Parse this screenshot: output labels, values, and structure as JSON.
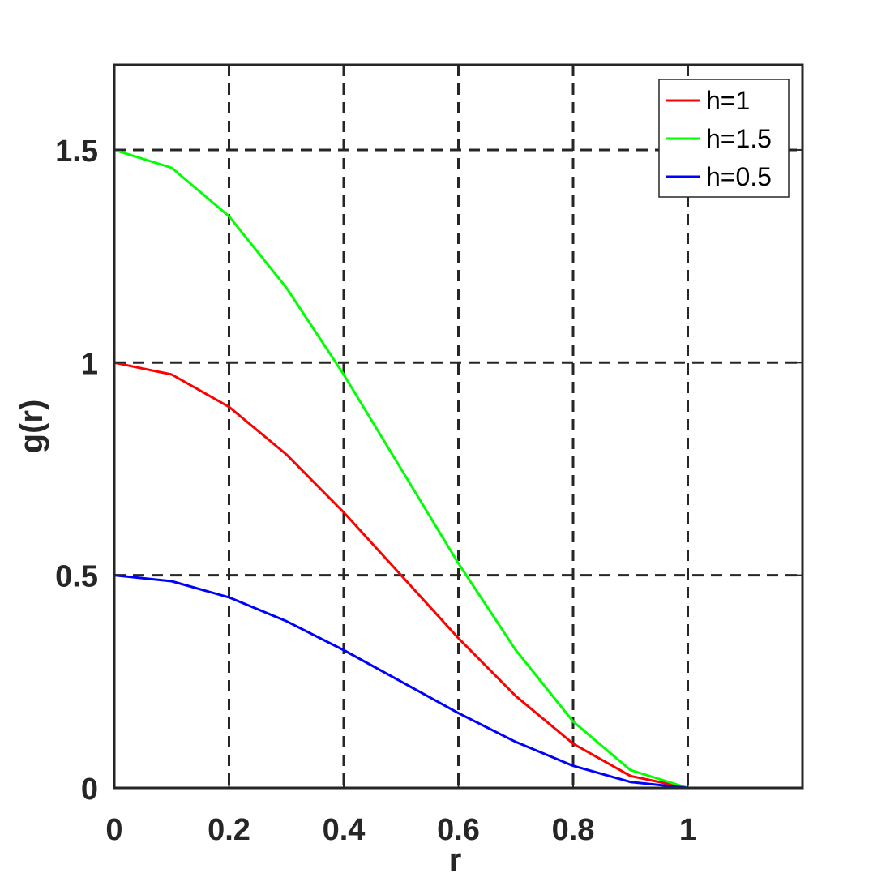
{
  "chart_data": {
    "type": "line",
    "xlabel": "r",
    "ylabel": "g(r)",
    "xlim": [
      0,
      1.2
    ],
    "ylim": [
      0,
      1.7
    ],
    "xticks": [
      0,
      0.2,
      0.4,
      0.6,
      0.8,
      1
    ],
    "xtick_labels": [
      "0",
      "0.2",
      "0.4",
      "0.6",
      "0.8",
      "1"
    ],
    "yticks": [
      0,
      0.5,
      1,
      1.5
    ],
    "ytick_labels": [
      "0",
      "0.5",
      "1",
      "1.5"
    ],
    "grid": "dashed",
    "legend_position": "top-right",
    "x": [
      0,
      0.1,
      0.2,
      0.3,
      0.4,
      0.5,
      0.6,
      0.7,
      0.8,
      0.9,
      1.0,
      1.1,
      1.2
    ],
    "series": [
      {
        "name": "h=1",
        "color": "#ff0000",
        "values": [
          1.0,
          0.972,
          0.896,
          0.784,
          0.648,
          0.5,
          0.352,
          0.216,
          0.104,
          0.028,
          0.0,
          0.0,
          0.0
        ]
      },
      {
        "name": "h=1.5",
        "color": "#00ff00",
        "values": [
          1.5,
          1.458,
          1.344,
          1.176,
          0.972,
          0.75,
          0.528,
          0.324,
          0.156,
          0.042,
          0.0,
          0.0,
          0.0
        ]
      },
      {
        "name": "h=0.5",
        "color": "#0000ff",
        "values": [
          0.5,
          0.486,
          0.448,
          0.392,
          0.324,
          0.25,
          0.176,
          0.108,
          0.052,
          0.014,
          0.0,
          0.0,
          0.0
        ]
      }
    ]
  }
}
